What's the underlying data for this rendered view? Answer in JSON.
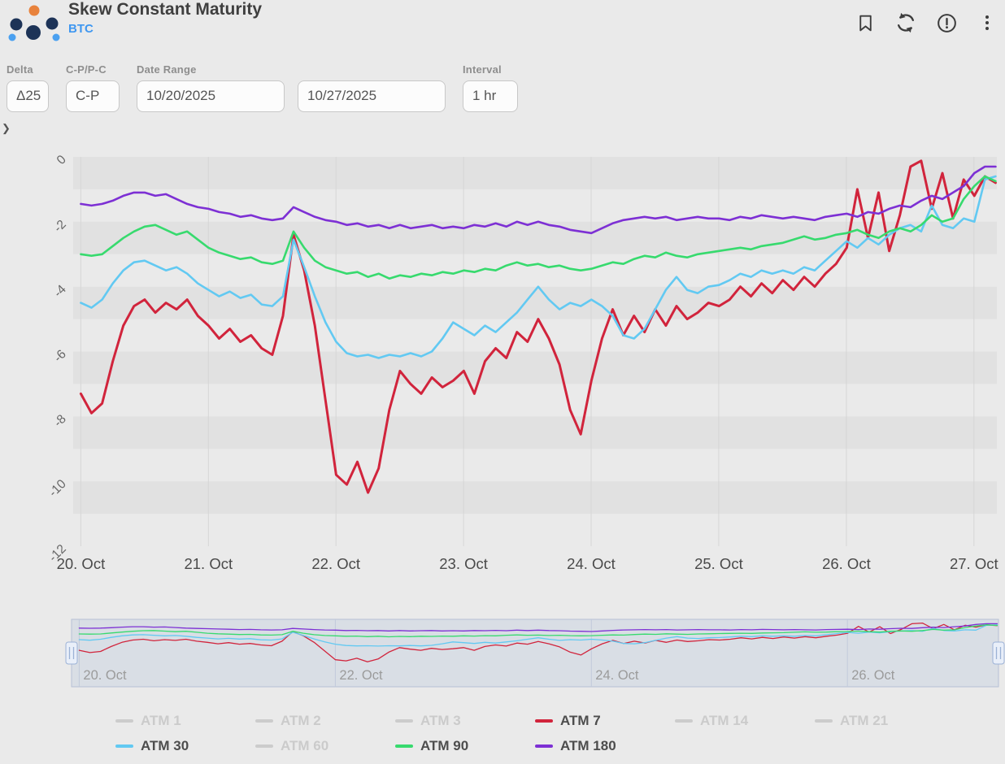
{
  "header": {
    "title": "Skew Constant Maturity",
    "subtitle": "BTC",
    "icons": [
      "bookmark-icon",
      "refresh-icon",
      "alert-icon",
      "kebab-menu-icon"
    ]
  },
  "filters": {
    "delta": {
      "label": "Delta",
      "value": "Δ25"
    },
    "cp": {
      "label": "C-P/P-C",
      "value": "C-P"
    },
    "date_range": {
      "label": "Date Range",
      "start": "10/20/2025",
      "end": "10/27/2025"
    },
    "interval": {
      "label": "Interval",
      "value": "1 hr"
    }
  },
  "expander": {
    "chevron": "❯"
  },
  "chart_data": {
    "type": "line",
    "title": "",
    "xlabel": "",
    "ylabel": "",
    "ylim": [
      -12,
      0
    ],
    "x_domain_days": [
      -0.06,
      7.18
    ],
    "points_span_days": [
      0,
      7.17
    ],
    "grid": "alternating-horizontal-bands",
    "band_color": "#e1e1e1",
    "legend_position": "bottom",
    "y_ticks": [
      {
        "value": 0,
        "label": "0"
      },
      {
        "value": -2,
        "label": "-2"
      },
      {
        "value": -4,
        "label": "-4"
      },
      {
        "value": -6,
        "label": "-6"
      },
      {
        "value": -8,
        "label": "-8"
      },
      {
        "value": -10,
        "label": "-10"
      },
      {
        "value": -12,
        "label": "-12"
      }
    ],
    "x_ticks": [
      {
        "day": 0,
        "label": "20. Oct"
      },
      {
        "day": 1,
        "label": "21. Oct"
      },
      {
        "day": 2,
        "label": "22. Oct"
      },
      {
        "day": 3,
        "label": "23. Oct"
      },
      {
        "day": 4,
        "label": "24. Oct"
      },
      {
        "day": 5,
        "label": "25. Oct"
      },
      {
        "day": 6,
        "label": "26. Oct"
      },
      {
        "day": 7,
        "label": "27. Oct"
      }
    ],
    "series": [
      {
        "name": "ATM 7",
        "color": "#d1243c",
        "lw": 3,
        "values": [
          -7.3,
          -7.9,
          -7.6,
          -6.3,
          -5.2,
          -4.6,
          -4.4,
          -4.8,
          -4.5,
          -4.7,
          -4.4,
          -4.9,
          -5.2,
          -5.6,
          -5.3,
          -5.7,
          -5.5,
          -5.9,
          -6.1,
          -4.9,
          -2.4,
          -3.5,
          -5.2,
          -7.5,
          -9.8,
          -10.1,
          -9.4,
          -10.35,
          -9.6,
          -7.8,
          -6.6,
          -7.0,
          -7.3,
          -6.8,
          -7.1,
          -6.9,
          -6.6,
          -7.3,
          -6.3,
          -5.9,
          -6.2,
          -5.4,
          -5.7,
          -5.0,
          -5.6,
          -6.4,
          -7.8,
          -8.55,
          -6.9,
          -5.6,
          -4.7,
          -5.5,
          -4.9,
          -5.4,
          -4.7,
          -5.2,
          -4.6,
          -5.0,
          -4.8,
          -4.5,
          -4.6,
          -4.4,
          -4.0,
          -4.3,
          -3.9,
          -4.2,
          -3.8,
          -4.1,
          -3.7,
          -4.0,
          -3.6,
          -3.3,
          -2.8,
          -1.0,
          -2.5,
          -1.1,
          -2.9,
          -1.8,
          -0.3,
          -0.12,
          -1.6,
          -0.5,
          -1.9,
          -0.7,
          -1.2,
          -0.6,
          -0.8
        ]
      },
      {
        "name": "ATM 30",
        "color": "#62c9f2",
        "lw": 2.6,
        "values": [
          -4.5,
          -4.65,
          -4.4,
          -3.9,
          -3.5,
          -3.25,
          -3.2,
          -3.35,
          -3.5,
          -3.4,
          -3.6,
          -3.9,
          -4.1,
          -4.3,
          -4.15,
          -4.35,
          -4.25,
          -4.55,
          -4.6,
          -4.3,
          -2.55,
          -3.4,
          -4.3,
          -5.1,
          -5.7,
          -6.05,
          -6.15,
          -6.1,
          -6.2,
          -6.1,
          -6.15,
          -6.05,
          -6.15,
          -6.0,
          -5.6,
          -5.1,
          -5.3,
          -5.5,
          -5.2,
          -5.4,
          -5.1,
          -4.8,
          -4.4,
          -4.0,
          -4.4,
          -4.7,
          -4.5,
          -4.6,
          -4.4,
          -4.6,
          -4.9,
          -5.5,
          -5.6,
          -5.3,
          -4.7,
          -4.1,
          -3.7,
          -4.1,
          -4.2,
          -4.0,
          -3.95,
          -3.8,
          -3.6,
          -3.7,
          -3.5,
          -3.6,
          -3.5,
          -3.6,
          -3.4,
          -3.5,
          -3.2,
          -2.9,
          -2.6,
          -2.8,
          -2.5,
          -2.7,
          -2.4,
          -2.2,
          -2.1,
          -2.3,
          -1.5,
          -2.1,
          -2.2,
          -1.9,
          -2.0,
          -0.7,
          -0.6
        ]
      },
      {
        "name": "ATM 90",
        "color": "#37da6e",
        "lw": 2.6,
        "values": [
          -3.0,
          -3.05,
          -3.0,
          -2.75,
          -2.5,
          -2.3,
          -2.15,
          -2.1,
          -2.25,
          -2.4,
          -2.3,
          -2.55,
          -2.8,
          -2.95,
          -3.05,
          -3.15,
          -3.1,
          -3.25,
          -3.3,
          -3.2,
          -2.3,
          -2.8,
          -3.2,
          -3.4,
          -3.5,
          -3.6,
          -3.55,
          -3.7,
          -3.6,
          -3.75,
          -3.65,
          -3.7,
          -3.6,
          -3.65,
          -3.55,
          -3.6,
          -3.5,
          -3.55,
          -3.45,
          -3.5,
          -3.35,
          -3.25,
          -3.35,
          -3.3,
          -3.4,
          -3.35,
          -3.45,
          -3.5,
          -3.45,
          -3.35,
          -3.25,
          -3.3,
          -3.15,
          -3.05,
          -3.1,
          -2.95,
          -3.05,
          -3.1,
          -3.0,
          -2.95,
          -2.9,
          -2.85,
          -2.8,
          -2.85,
          -2.75,
          -2.7,
          -2.65,
          -2.55,
          -2.45,
          -2.55,
          -2.5,
          -2.4,
          -2.35,
          -2.25,
          -2.4,
          -2.5,
          -2.3,
          -2.2,
          -2.3,
          -2.1,
          -1.8,
          -2.0,
          -1.9,
          -1.3,
          -0.9,
          -0.6,
          -0.75
        ]
      },
      {
        "name": "ATM 180",
        "color": "#7d30d4",
        "lw": 2.6,
        "values": [
          -1.45,
          -1.5,
          -1.45,
          -1.35,
          -1.2,
          -1.1,
          -1.1,
          -1.2,
          -1.15,
          -1.3,
          -1.45,
          -1.55,
          -1.6,
          -1.7,
          -1.75,
          -1.85,
          -1.8,
          -1.9,
          -1.95,
          -1.9,
          -1.55,
          -1.7,
          -1.85,
          -1.95,
          -2.0,
          -2.1,
          -2.05,
          -2.15,
          -2.1,
          -2.2,
          -2.1,
          -2.2,
          -2.15,
          -2.1,
          -2.2,
          -2.15,
          -2.2,
          -2.1,
          -2.15,
          -2.05,
          -2.15,
          -2.0,
          -2.1,
          -2.0,
          -2.1,
          -2.15,
          -2.25,
          -2.3,
          -2.35,
          -2.2,
          -2.05,
          -1.95,
          -1.9,
          -1.85,
          -1.9,
          -1.85,
          -1.95,
          -1.9,
          -1.85,
          -1.9,
          -1.9,
          -1.95,
          -1.85,
          -1.9,
          -1.8,
          -1.85,
          -1.9,
          -1.85,
          -1.9,
          -1.95,
          -1.85,
          -1.8,
          -1.75,
          -1.85,
          -1.7,
          -1.75,
          -1.6,
          -1.5,
          -1.55,
          -1.35,
          -1.2,
          -1.3,
          -1.1,
          -0.9,
          -0.5,
          -0.3,
          -0.3
        ]
      }
    ]
  },
  "navigator": {
    "x_ticks": [
      {
        "day": 0,
        "label": "20. Oct"
      },
      {
        "day": 2,
        "label": "22. Oct"
      },
      {
        "day": 4,
        "label": "24. Oct"
      },
      {
        "day": 6,
        "label": "26. Oct"
      }
    ]
  },
  "legend": {
    "inactive_color": "#cccccc",
    "rows": [
      [
        {
          "label": "ATM 1",
          "active": false,
          "color": "#cccccc"
        },
        {
          "label": "ATM 2",
          "active": false,
          "color": "#cccccc"
        },
        {
          "label": "ATM 3",
          "active": false,
          "color": "#cccccc"
        },
        {
          "label": "ATM 7",
          "active": true,
          "color": "#d1243c"
        },
        {
          "label": "ATM 14",
          "active": false,
          "color": "#cccccc"
        },
        {
          "label": "ATM 21",
          "active": false,
          "color": "#cccccc"
        }
      ],
      [
        {
          "label": "ATM 30",
          "active": true,
          "color": "#62c9f2"
        },
        {
          "label": "ATM 60",
          "active": false,
          "color": "#cccccc"
        },
        {
          "label": "ATM 90",
          "active": true,
          "color": "#37da6e"
        },
        {
          "label": "ATM 180",
          "active": true,
          "color": "#7d30d4"
        }
      ]
    ]
  }
}
